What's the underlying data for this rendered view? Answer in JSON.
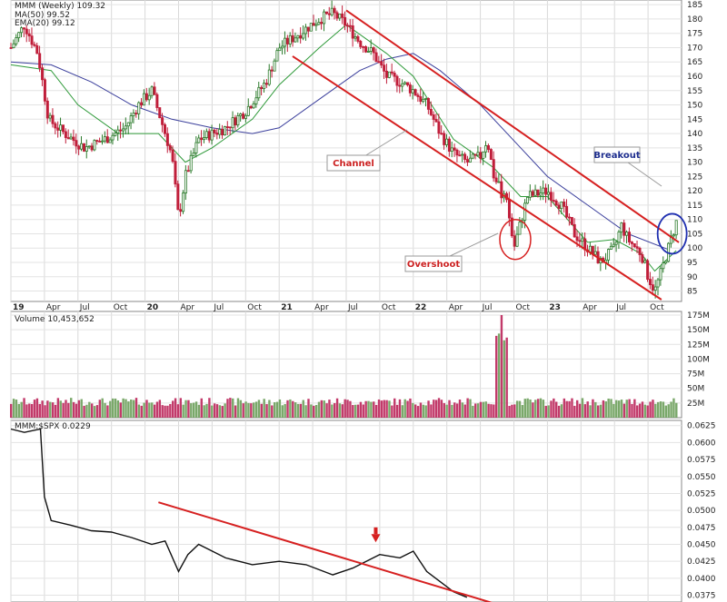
{
  "chart_data": [
    {
      "type": "candlestick",
      "panel": "price",
      "title": "MMM (Weekly) 109.32",
      "legend": [
        {
          "label": "MA(50) 99.52",
          "color": "#3b3f9c"
        },
        {
          "label": "EMA(20) 99.12",
          "color": "#2f9a3a"
        }
      ],
      "x_tick_labels": [
        "19",
        "Apr",
        "Jul",
        "Oct",
        "20",
        "Apr",
        "Jul",
        "Oct",
        "21",
        "Apr",
        "Jul",
        "Oct",
        "22",
        "Apr",
        "Jul",
        "Oct",
        "23",
        "Apr",
        "Jul",
        "Oct"
      ],
      "y_tick_labels": [
        "185",
        "180",
        "175",
        "170",
        "165",
        "160",
        "155",
        "150",
        "145",
        "140",
        "135",
        "130",
        "125",
        "120",
        "115",
        "110",
        "105",
        "100",
        "95",
        "90",
        "85"
      ],
      "ylim": [
        82,
        186
      ],
      "price_path": [
        [
          2019.0,
          170
        ],
        [
          2019.1,
          178
        ],
        [
          2019.2,
          168
        ],
        [
          2019.28,
          145
        ],
        [
          2019.4,
          140
        ],
        [
          2019.55,
          135
        ],
        [
          2019.7,
          138
        ],
        [
          2019.85,
          142
        ],
        [
          2019.95,
          150
        ],
        [
          2020.05,
          155
        ],
        [
          2020.15,
          140
        ],
        [
          2020.2,
          132
        ],
        [
          2020.25,
          110
        ],
        [
          2020.3,
          125
        ],
        [
          2020.4,
          138
        ],
        [
          2020.6,
          142
        ],
        [
          2020.75,
          148
        ],
        [
          2020.9,
          158
        ],
        [
          2021.0,
          170
        ],
        [
          2021.15,
          175
        ],
        [
          2021.3,
          180
        ],
        [
          2021.4,
          182
        ],
        [
          2021.5,
          178
        ],
        [
          2021.6,
          172
        ],
        [
          2021.7,
          168
        ],
        [
          2021.8,
          160
        ],
        [
          2021.9,
          158
        ],
        [
          2022.0,
          155
        ],
        [
          2022.1,
          150
        ],
        [
          2022.2,
          140
        ],
        [
          2022.3,
          133
        ],
        [
          2022.4,
          130
        ],
        [
          2022.5,
          132
        ],
        [
          2022.55,
          138
        ],
        [
          2022.6,
          125
        ],
        [
          2022.7,
          115
        ],
        [
          2022.75,
          100
        ],
        [
          2022.85,
          118
        ],
        [
          2023.0,
          120
        ],
        [
          2023.1,
          115
        ],
        [
          2023.2,
          105
        ],
        [
          2023.3,
          100
        ],
        [
          2023.4,
          95
        ],
        [
          2023.5,
          100
        ],
        [
          2023.55,
          108
        ],
        [
          2023.6,
          103
        ],
        [
          2023.7,
          98
        ],
        [
          2023.75,
          90
        ],
        [
          2023.8,
          85
        ],
        [
          2023.85,
          92
        ],
        [
          2023.92,
          103
        ],
        [
          2023.96,
          109
        ]
      ],
      "ma50_path": [
        [
          2019.0,
          165
        ],
        [
          2019.3,
          164
        ],
        [
          2019.6,
          158
        ],
        [
          2019.9,
          150
        ],
        [
          2020.2,
          145
        ],
        [
          2020.5,
          142
        ],
        [
          2020.8,
          140
        ],
        [
          2021.0,
          142
        ],
        [
          2021.3,
          152
        ],
        [
          2021.6,
          162
        ],
        [
          2021.8,
          166
        ],
        [
          2022.0,
          168
        ],
        [
          2022.2,
          162
        ],
        [
          2022.5,
          150
        ],
        [
          2022.8,
          135
        ],
        [
          2023.0,
          125
        ],
        [
          2023.3,
          115
        ],
        [
          2023.6,
          105
        ],
        [
          2023.9,
          99.52
        ]
      ],
      "ema20_path": [
        [
          2019.0,
          164
        ],
        [
          2019.3,
          162
        ],
        [
          2019.5,
          150
        ],
        [
          2019.8,
          140
        ],
        [
          2020.1,
          140
        ],
        [
          2020.3,
          130
        ],
        [
          2020.5,
          135
        ],
        [
          2020.8,
          145
        ],
        [
          2021.0,
          157
        ],
        [
          2021.3,
          170
        ],
        [
          2021.5,
          178
        ],
        [
          2021.8,
          168
        ],
        [
          2022.0,
          160
        ],
        [
          2022.3,
          138
        ],
        [
          2022.6,
          128
        ],
        [
          2022.8,
          118
        ],
        [
          2023.0,
          118
        ],
        [
          2023.3,
          102
        ],
        [
          2023.5,
          103
        ],
        [
          2023.7,
          98
        ],
        [
          2023.8,
          92
        ],
        [
          2023.96,
          99.12
        ]
      ],
      "annotations": [
        {
          "text": "Channel",
          "color": "#cc2222"
        },
        {
          "text": "Breakout",
          "color": "#1f2f8f"
        },
        {
          "text": "Overshoot",
          "color": "#cc2222"
        }
      ]
    },
    {
      "type": "bar",
      "panel": "volume",
      "title": "Volume 10,453,652",
      "y_tick_labels": [
        "175M",
        "150M",
        "125M",
        "100M",
        "75M",
        "50M",
        "25M"
      ],
      "ylim": [
        0,
        175
      ],
      "spike_value_M": 175
    },
    {
      "type": "line",
      "panel": "ratio",
      "title": "MMM:$SPX 0.0229",
      "y_tick_labels": [
        "0.0625",
        "0.0600",
        "0.0575",
        "0.0550",
        "0.0525",
        "0.0500",
        "0.0475",
        "0.0450",
        "0.0425",
        "0.0400",
        "0.0375"
      ],
      "ylim": [
        0.0365,
        0.063
      ],
      "ratio_path": [
        [
          2019.0,
          0.062
        ],
        [
          2019.1,
          0.0615
        ],
        [
          2019.22,
          0.062
        ],
        [
          2019.25,
          0.052
        ],
        [
          2019.3,
          0.0485
        ],
        [
          2019.45,
          0.0478
        ],
        [
          2019.6,
          0.047
        ],
        [
          2019.75,
          0.0468
        ],
        [
          2019.9,
          0.046
        ],
        [
          2020.05,
          0.045
        ],
        [
          2020.15,
          0.0455
        ],
        [
          2020.25,
          0.041
        ],
        [
          2020.32,
          0.0435
        ],
        [
          2020.4,
          0.045
        ],
        [
          2020.6,
          0.043
        ],
        [
          2020.8,
          0.042
        ],
        [
          2021.0,
          0.0425
        ],
        [
          2021.2,
          0.042
        ],
        [
          2021.4,
          0.0405
        ],
        [
          2021.55,
          0.0415
        ],
        [
          2021.75,
          0.0435
        ],
        [
          2021.9,
          0.043
        ],
        [
          2022.0,
          0.044
        ],
        [
          2022.05,
          0.0425
        ],
        [
          2022.1,
          0.041
        ],
        [
          2022.2,
          0.0395
        ],
        [
          2022.3,
          0.038
        ],
        [
          2022.4,
          0.0372
        ]
      ]
    }
  ]
}
